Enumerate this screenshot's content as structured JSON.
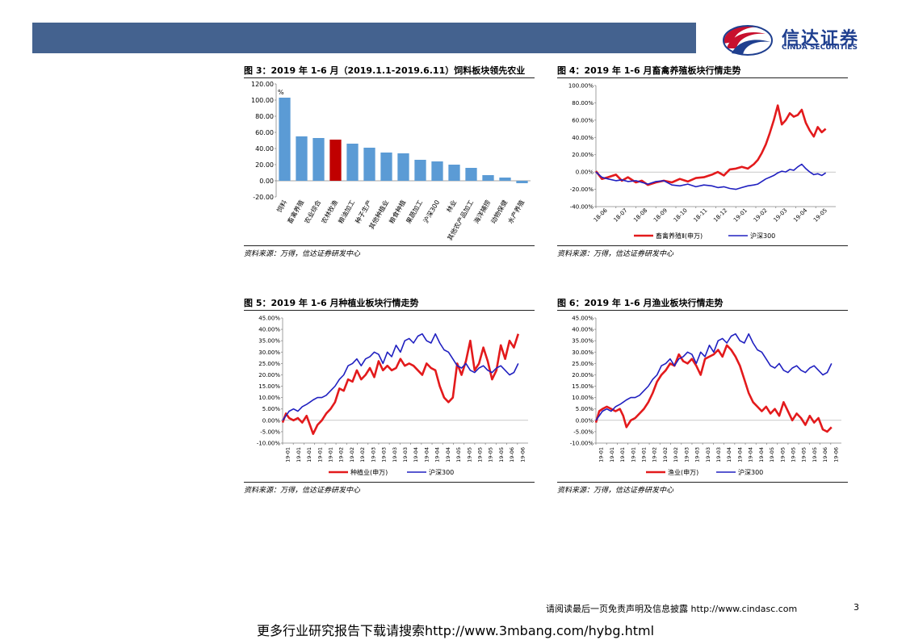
{
  "header": {
    "logo_cn": "信达证券",
    "logo_en": "CINDA SECURITIES",
    "colors": {
      "banner": "#44628f",
      "logo_red": "#c8102e",
      "logo_blue": "#1f3f8f"
    }
  },
  "figures": [
    {
      "title": "图 3：2019 年 1-6 月（2019.1.1-2019.6.11）饲料板块领先农业",
      "source": "资料来源：万得，信达证券研发中心"
    },
    {
      "title": "图 4：2019 年 1-6 月畜禽养殖板块行情走势",
      "source": "资料来源：万得，信达证券研发中心"
    },
    {
      "title": "图 5：2019 年 1-6 月种植业板块行情走势",
      "source": "资料来源：万得，信达证券研发中心"
    },
    {
      "title": "图 6：2019 年 1-6 月渔业板块行情走势",
      "source": "资料来源：万得，信达证券研发中心"
    }
  ],
  "chart_data": [
    {
      "type": "bar",
      "unit_label": "%",
      "categories": [
        "饲料",
        "畜禽养殖",
        "农业综合",
        "农林牧渔",
        "粮油加工",
        "种子生产",
        "其他种植业",
        "粮食种植",
        "果蔬加工",
        "沪深300",
        "林业",
        "其他农产品加工",
        "海洋捕捞",
        "动物保健",
        "水产养殖"
      ],
      "values": [
        103,
        55,
        53,
        51,
        46,
        41,
        35,
        34,
        26,
        24,
        20,
        16,
        7,
        4,
        -3
      ],
      "highlight_index": 3,
      "colors": {
        "bar": "#5b9bd5",
        "highlight": "#c00000"
      },
      "ylim": [
        -20,
        120
      ],
      "yticks": [
        "120.00",
        "100.00",
        "80.00",
        "60.00",
        "40.00",
        "20.00",
        "0.00",
        "-20.00"
      ]
    },
    {
      "type": "line",
      "xticks": [
        "18-06",
        "18-07",
        "18-08",
        "18-09",
        "18-10",
        "18-11",
        "18-12",
        "19-01",
        "19-02",
        "19-03",
        "19-04",
        "19-05"
      ],
      "yticks": [
        "100.00%",
        "80.00%",
        "60.00%",
        "40.00%",
        "20.00%",
        "0.00%",
        "-20.00%",
        "-40.00%"
      ],
      "ylim": [
        -40,
        100
      ],
      "series": [
        {
          "name": "畜禽养殖Ⅱ(申万)",
          "color": "#e31a1c",
          "x": [
            0,
            0.3,
            0.6,
            1.0,
            1.3,
            1.6,
            2.0,
            2.3,
            2.6,
            3.0,
            3.4,
            3.8,
            4.2,
            4.6,
            5.0,
            5.4,
            5.8,
            6.1,
            6.4,
            6.7,
            7.0,
            7.3,
            7.6,
            7.9,
            8.1,
            8.3,
            8.5,
            8.7,
            8.9,
            9.1,
            9.3,
            9.5,
            9.7,
            9.9,
            10.1,
            10.3,
            10.5,
            10.7,
            10.9,
            11.1,
            11.3,
            11.5
          ],
          "y": [
            1,
            -8,
            -6,
            -3,
            -10,
            -6,
            -12,
            -10,
            -15,
            -12,
            -10,
            -12,
            -8,
            -11,
            -7,
            -6,
            -3,
            0,
            -4,
            3,
            4,
            6,
            4,
            9,
            14,
            22,
            32,
            45,
            60,
            77,
            55,
            60,
            68,
            64,
            66,
            72,
            57,
            48,
            41,
            52,
            46,
            50
          ]
        },
        {
          "name": "沪深300",
          "color": "#2020c0",
          "x": [
            0,
            0.3,
            0.6,
            1.0,
            1.3,
            1.6,
            2.0,
            2.3,
            2.6,
            3.0,
            3.4,
            3.8,
            4.2,
            4.6,
            5.0,
            5.4,
            5.8,
            6.1,
            6.4,
            6.7,
            7.0,
            7.3,
            7.6,
            7.9,
            8.1,
            8.3,
            8.5,
            8.7,
            8.9,
            9.1,
            9.3,
            9.5,
            9.7,
            9.9,
            10.1,
            10.3,
            10.5,
            10.7,
            10.9,
            11.1,
            11.3,
            11.5
          ],
          "y": [
            0,
            -6,
            -8,
            -10,
            -9,
            -11,
            -10,
            -12,
            -14,
            -11,
            -10,
            -15,
            -16,
            -14,
            -17,
            -15,
            -16,
            -18,
            -17,
            -19,
            -20,
            -18,
            -16,
            -15,
            -14,
            -11,
            -8,
            -6,
            -4,
            -1,
            1,
            0,
            3,
            2,
            6,
            9,
            4,
            0,
            -3,
            -2,
            -4,
            -1
          ]
        }
      ]
    },
    {
      "type": "line",
      "xticks": [
        "19-01",
        "19-01",
        "19-01",
        "19-01",
        "19-01",
        "19-02",
        "19-02",
        "19-02",
        "19-03",
        "19-03",
        "19-03",
        "19-03",
        "19-04",
        "19-04",
        "19-04",
        "19-04",
        "19-05",
        "19-05",
        "19-05",
        "19-05",
        "19-05",
        "19-06",
        "19-06"
      ],
      "yticks": [
        "45.00%",
        "40.00%",
        "35.00%",
        "30.00%",
        "25.00%",
        "20.00%",
        "15.00%",
        "10.00%",
        "5.00%",
        "0.00%",
        "-5.00%",
        "-10.00%"
      ],
      "ylim": [
        -10,
        45
      ],
      "series": [
        {
          "name": "种植业(申万)",
          "color": "#e31a1c",
          "x": [
            0,
            0.3,
            0.6,
            1.0,
            1.4,
            1.8,
            2.2,
            2.5,
            2.8,
            3.2,
            3.6,
            4.0,
            4.4,
            4.8,
            5.2,
            5.6,
            6.0,
            6.4,
            6.8,
            7.2,
            7.6,
            8.0,
            8.4,
            8.8,
            9.2,
            9.6,
            10.0,
            10.4,
            10.8,
            11.2,
            11.6,
            12.0,
            12.4,
            12.8,
            13.2,
            13.6,
            14.0,
            14.4,
            14.8,
            15.2,
            15.6,
            16.0,
            16.4,
            16.8,
            17.2,
            17.6,
            18.0,
            18.4,
            18.8,
            19.2,
            19.6,
            20.0,
            20.4,
            20.8,
            21.2,
            21.6
          ],
          "y": [
            -1,
            3,
            1,
            0,
            1,
            -1,
            2,
            -2,
            -6,
            -2,
            0,
            3,
            5,
            8,
            14,
            13,
            18,
            17,
            22,
            18,
            20,
            23,
            19,
            26,
            22,
            24,
            22,
            23,
            27,
            24,
            25,
            24,
            22,
            20,
            25,
            23,
            22,
            15,
            10,
            8,
            10,
            25,
            20,
            26,
            35,
            22,
            25,
            32,
            26,
            18,
            22,
            33,
            27,
            35,
            32,
            38
          ]
        },
        {
          "name": "沪深300",
          "color": "#2020c0",
          "x": [
            0,
            0.3,
            0.6,
            1.0,
            1.4,
            1.8,
            2.2,
            2.5,
            2.8,
            3.2,
            3.6,
            4.0,
            4.4,
            4.8,
            5.2,
            5.6,
            6.0,
            6.4,
            6.8,
            7.2,
            7.6,
            8.0,
            8.4,
            8.8,
            9.2,
            9.6,
            10.0,
            10.4,
            10.8,
            11.2,
            11.6,
            12.0,
            12.4,
            12.8,
            13.2,
            13.6,
            14.0,
            14.4,
            14.8,
            15.2,
            15.6,
            16.0,
            16.4,
            16.8,
            17.2,
            17.6,
            18.0,
            18.4,
            18.8,
            19.2,
            19.6,
            20.0,
            20.4,
            20.8,
            21.2,
            21.6
          ],
          "y": [
            0,
            2,
            4,
            5,
            4,
            6,
            7,
            8,
            9,
            10,
            10,
            11,
            13,
            15,
            18,
            20,
            24,
            25,
            27,
            24,
            27,
            28,
            30,
            29,
            25,
            30,
            28,
            33,
            30,
            35,
            36,
            34,
            37,
            38,
            35,
            34,
            38,
            34,
            31,
            30,
            27,
            24,
            23,
            25,
            22,
            21,
            23,
            24,
            22,
            21,
            23,
            24,
            22,
            20,
            21,
            25
          ]
        }
      ]
    },
    {
      "type": "line",
      "xticks": [
        "19-01",
        "19-01",
        "19-01",
        "19-01",
        "19-01",
        "19-02",
        "19-02",
        "19-02",
        "19-03",
        "19-03",
        "19-03",
        "19-03",
        "19-04",
        "19-04",
        "19-04",
        "19-04",
        "19-05",
        "19-05",
        "19-05",
        "19-05",
        "19-05",
        "19-06",
        "19-06"
      ],
      "yticks": [
        "45.00%",
        "40.00%",
        "35.00%",
        "30.00%",
        "25.00%",
        "20.00%",
        "15.00%",
        "10.00%",
        "5.00%",
        "0.00%",
        "-5.00%",
        "-10.00%"
      ],
      "ylim": [
        -10,
        45
      ],
      "series": [
        {
          "name": "渔业(申万)",
          "color": "#e31a1c",
          "x": [
            0,
            0.3,
            0.6,
            1.0,
            1.4,
            1.8,
            2.2,
            2.5,
            2.8,
            3.2,
            3.6,
            4.0,
            4.4,
            4.8,
            5.2,
            5.6,
            6.0,
            6.4,
            6.8,
            7.2,
            7.6,
            8.0,
            8.4,
            8.8,
            9.2,
            9.6,
            10.0,
            10.4,
            10.8,
            11.2,
            11.6,
            12.0,
            12.4,
            12.8,
            13.2,
            13.6,
            14.0,
            14.4,
            14.8,
            15.2,
            15.6,
            16.0,
            16.4,
            16.8,
            17.2,
            17.6,
            18.0,
            18.4,
            18.8,
            19.2,
            19.6,
            20.0,
            20.4,
            20.8,
            21.2,
            21.6
          ],
          "y": [
            -1,
            4,
            5,
            6,
            5,
            4,
            5,
            2,
            -3,
            0,
            1,
            3,
            5,
            8,
            12,
            17,
            20,
            22,
            25,
            24,
            29,
            26,
            25,
            27,
            24,
            20,
            27,
            28,
            29,
            31,
            28,
            33,
            31,
            28,
            24,
            18,
            12,
            8,
            6,
            4,
            6,
            3,
            5,
            2,
            8,
            4,
            0,
            3,
            1,
            -2,
            2,
            -1,
            1,
            -4,
            -5,
            -3
          ]
        },
        {
          "name": "沪深300",
          "color": "#2020c0",
          "x": [
            0,
            0.3,
            0.6,
            1.0,
            1.4,
            1.8,
            2.2,
            2.5,
            2.8,
            3.2,
            3.6,
            4.0,
            4.4,
            4.8,
            5.2,
            5.6,
            6.0,
            6.4,
            6.8,
            7.2,
            7.6,
            8.0,
            8.4,
            8.8,
            9.2,
            9.6,
            10.0,
            10.4,
            10.8,
            11.2,
            11.6,
            12.0,
            12.4,
            12.8,
            13.2,
            13.6,
            14.0,
            14.4,
            14.8,
            15.2,
            15.6,
            16.0,
            16.4,
            16.8,
            17.2,
            17.6,
            18.0,
            18.4,
            18.8,
            19.2,
            19.6,
            20.0,
            20.4,
            20.8,
            21.2,
            21.6
          ],
          "y": [
            0,
            2,
            4,
            5,
            4,
            6,
            7,
            8,
            9,
            10,
            10,
            11,
            13,
            15,
            18,
            20,
            24,
            25,
            27,
            24,
            27,
            28,
            30,
            29,
            25,
            30,
            28,
            33,
            30,
            35,
            36,
            34,
            37,
            38,
            35,
            34,
            38,
            34,
            31,
            30,
            27,
            24,
            23,
            25,
            22,
            21,
            23,
            24,
            22,
            21,
            23,
            24,
            22,
            20,
            21,
            25
          ]
        }
      ]
    }
  ],
  "footer": {
    "disclaimer": "请阅读最后一页免责声明及信息披露 http://www.cindasc.com",
    "page_number": "3",
    "promo": "更多行业研究报告下载请搜索http://www.3mbang.com/hybg.html"
  }
}
